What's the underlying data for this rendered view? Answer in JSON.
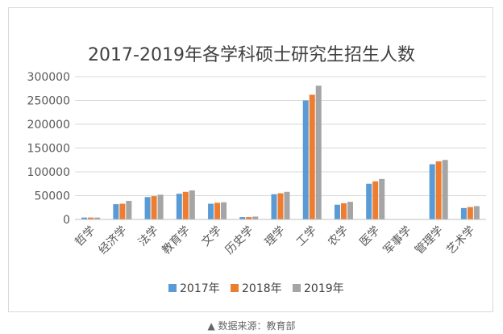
{
  "chart_data": {
    "type": "bar",
    "title": "2017-2019年各学科硕士研究生招生人数",
    "categories": [
      "哲学",
      "经济学",
      "法学",
      "教育学",
      "文学",
      "历史学",
      "理学",
      "工学",
      "农学",
      "医学",
      "军事学",
      "管理学",
      "艺术学"
    ],
    "series": [
      {
        "name": "2017年",
        "color": "#5b9bd5",
        "values": [
          4000,
          32000,
          47000,
          54000,
          33000,
          5000,
          53000,
          250000,
          31000,
          75000,
          0,
          116000,
          24000
        ]
      },
      {
        "name": "2018年",
        "color": "#ed7d31",
        "values": [
          4000,
          33000,
          49000,
          58000,
          35000,
          5000,
          55000,
          262000,
          34000,
          80000,
          0,
          122000,
          26000
        ]
      },
      {
        "name": "2019年",
        "color": "#a5a5a5",
        "values": [
          4000,
          39000,
          52000,
          61000,
          36000,
          6000,
          58000,
          281000,
          37000,
          85000,
          0,
          125000,
          28000
        ]
      }
    ],
    "yticks": [
      "0",
      "50000",
      "100000",
      "150000",
      "200000",
      "250000",
      "300000"
    ],
    "ylim": [
      0,
      300000
    ],
    "grid": true,
    "legend": "bottom"
  },
  "caption": "▲ 数据来源：教育部"
}
